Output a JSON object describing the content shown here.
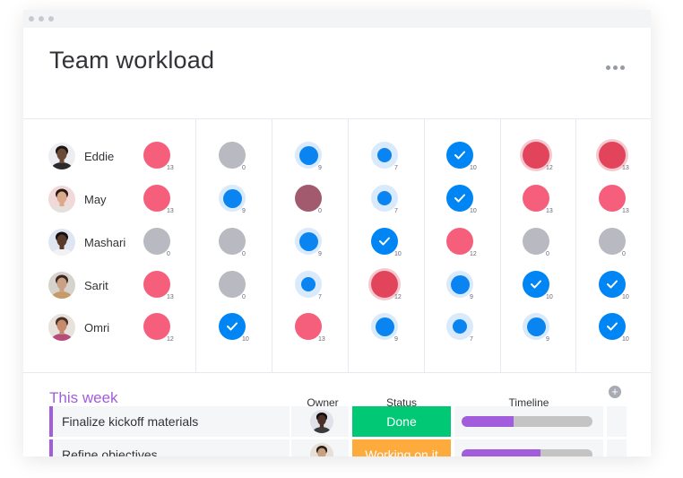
{
  "header": {
    "title": "Team workload"
  },
  "grid": {
    "people": [
      {
        "name": "Eddie",
        "skin": "#6b4a38",
        "hair": "#1d1512",
        "shirt": "#2b2b2b",
        "bg": "#eceef1",
        "cells": [
          {
            "style": "pink",
            "count": "13"
          },
          {
            "style": "gray",
            "count": "0"
          },
          {
            "style": "ring",
            "count": "9"
          },
          {
            "style": "ring-small",
            "count": "7"
          },
          {
            "style": "check",
            "count": "10"
          },
          {
            "style": "crimson",
            "count": "12"
          },
          {
            "style": "crimson",
            "count": "13"
          }
        ]
      },
      {
        "name": "May",
        "skin": "#d9a98a",
        "hair": "#2a1a15",
        "shirt": "#e4e0de",
        "bg": "#f1d9da",
        "cells": [
          {
            "style": "pink",
            "count": "13"
          },
          {
            "style": "ring",
            "count": "9"
          },
          {
            "style": "mauve",
            "count": "0"
          },
          {
            "style": "ring-small",
            "count": "7"
          },
          {
            "style": "check",
            "count": "10"
          },
          {
            "style": "pink",
            "count": "13"
          },
          {
            "style": "pink",
            "count": "13"
          }
        ]
      },
      {
        "name": "Mashari",
        "skin": "#5a3a2a",
        "hair": "#141010",
        "shirt": "#f2f2f2",
        "bg": "#dfe6f2",
        "cells": [
          {
            "style": "gray",
            "count": "0"
          },
          {
            "style": "gray",
            "count": "0"
          },
          {
            "style": "ring",
            "count": "9"
          },
          {
            "style": "check",
            "count": "10"
          },
          {
            "style": "pink",
            "count": "12"
          },
          {
            "style": "gray",
            "count": "0"
          },
          {
            "style": "gray",
            "count": "0"
          }
        ]
      },
      {
        "name": "Sarit",
        "skin": "#caa086",
        "hair": "#3a2520",
        "shirt": "#c79a6a",
        "bg": "#d6d3cd",
        "cells": [
          {
            "style": "pink",
            "count": "13"
          },
          {
            "style": "gray",
            "count": "0"
          },
          {
            "style": "ring-small",
            "count": "7"
          },
          {
            "style": "crimson",
            "count": "12"
          },
          {
            "style": "ring",
            "count": "9"
          },
          {
            "style": "check",
            "count": "10"
          },
          {
            "style": "check",
            "count": "10"
          }
        ]
      },
      {
        "name": "Omri",
        "skin": "#c58b6c",
        "hair": "#4a2f22",
        "shirt": "#b54c7a",
        "bg": "#e7e3dc",
        "cells": [
          {
            "style": "pink",
            "count": "12"
          },
          {
            "style": "check",
            "count": "10"
          },
          {
            "style": "pink",
            "count": "13"
          },
          {
            "style": "ring",
            "count": "9"
          },
          {
            "style": "ring-small",
            "count": "7"
          },
          {
            "style": "ring",
            "count": "9"
          },
          {
            "style": "check",
            "count": "10"
          }
        ]
      }
    ]
  },
  "board": {
    "group_title": "This week",
    "columns": {
      "owner": "Owner",
      "status": "Status",
      "timeline": "Timeline"
    },
    "tasks": [
      {
        "name": "Finalize kickoff materials",
        "status": "Done",
        "status_color": "#00c875",
        "timeline_progress": 0.4,
        "owner": {
          "skin": "#4a3028",
          "hair": "#120d0c",
          "shirt": "#3b3b3b",
          "bg": "#dfe2e8"
        }
      },
      {
        "name": "Refine objectives",
        "status": "Working on it",
        "status_color": "#fdab3d",
        "timeline_progress": 0.6,
        "owner": {
          "skin": "#c9a17f",
          "hair": "#2c1e17",
          "shirt": "#e6e6e6",
          "bg": "#e6e0d8"
        }
      }
    ]
  },
  "colors": {
    "accent_purple": "#a25ddc",
    "blue": "#0085f5",
    "pink": "#f65f7c",
    "crimson": "#e2445c",
    "gray": "#b8b9c1"
  }
}
